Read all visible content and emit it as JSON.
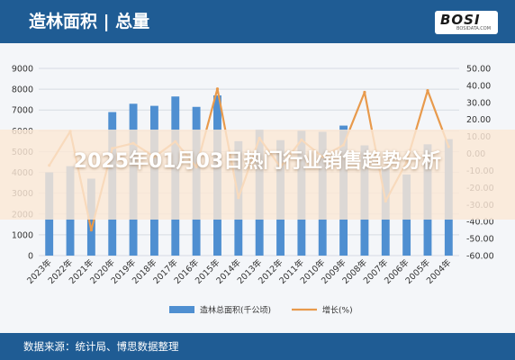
{
  "header": {
    "title": "造林面积 | 总量",
    "logo_main": "BOSI",
    "logo_sub": "BOSIDATA.COM"
  },
  "banner": {
    "title": "2025年01月03日热门行业销售趋势分析"
  },
  "footer": {
    "source": "数据来源：统计局、博思数据整理"
  },
  "colors": {
    "header_bg": "#1f5c94",
    "bar": "#4f8fd1",
    "line": "#e89a4c",
    "background": "#f4f6f9"
  },
  "chart_data": {
    "type": "bar",
    "categories": [
      "2023年",
      "2022年",
      "2021年",
      "2020年",
      "2019年",
      "2018年",
      "2017年",
      "2016年",
      "2015年",
      "2014年",
      "2013年",
      "2012年",
      "2011年",
      "2010年",
      "2009年",
      "2008年",
      "2007年",
      "2006年",
      "2005年",
      "2004年"
    ],
    "series": [
      {
        "name": "造林总面积(千公顷)",
        "type": "bar",
        "axis": "left",
        "values": [
          4000,
          4300,
          3700,
          6900,
          7300,
          7200,
          7650,
          7150,
          7700,
          5500,
          6050,
          5550,
          6000,
          5950,
          6250,
          5300,
          4200,
          3900,
          5350,
          5600
        ]
      },
      {
        "name": "增长(%)",
        "type": "line",
        "axis": "right",
        "values": [
          -7,
          13,
          -45,
          3,
          6,
          -2,
          7,
          -8,
          38,
          -26,
          9,
          -8,
          8,
          -2,
          5,
          36,
          -28,
          -5,
          37,
          4
        ]
      }
    ],
    "y_left": {
      "min": 0,
      "max": 9000,
      "ticks": [
        "0",
        "1000",
        "2000",
        "3000",
        "4000",
        "5000",
        "6000",
        "7000",
        "8000",
        "9000"
      ]
    },
    "y_right": {
      "min": -60,
      "max": 50,
      "ticks": [
        "-60.00",
        "-50.00",
        "-40.00",
        "-30.00",
        "-20.00",
        "-10.00",
        "0.00",
        "10.00",
        "20.00",
        "30.00",
        "40.00",
        "50.00"
      ]
    },
    "legend_position": "bottom",
    "grid": true
  }
}
